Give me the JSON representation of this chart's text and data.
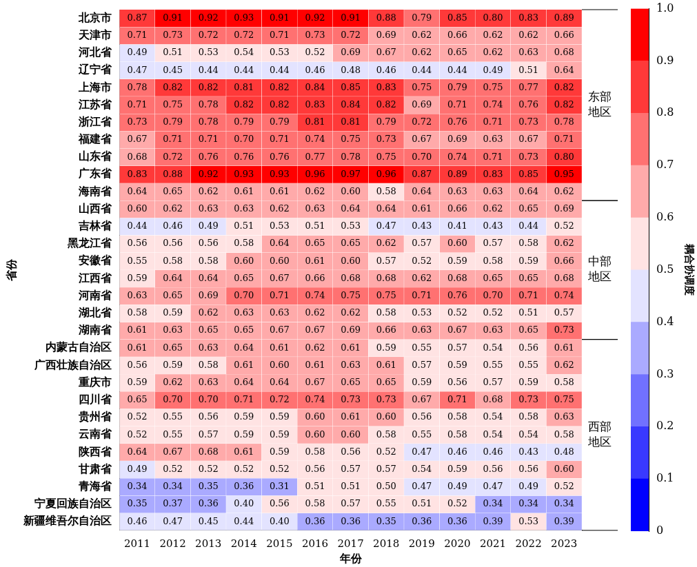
{
  "chart_data": {
    "type": "heatmap",
    "xlabel": "年份",
    "ylabel": "省份",
    "clabel": "耦合协调度",
    "data_labels": true,
    "grid": false,
    "legend": false,
    "categories": [
      "2011",
      "2012",
      "2013",
      "2014",
      "2015",
      "2016",
      "2017",
      "2018",
      "2019",
      "2020",
      "2021",
      "2022",
      "2023"
    ],
    "y_categories": [
      "北京市",
      "天津市",
      "河北省",
      "辽宁省",
      "上海市",
      "江苏省",
      "浙江省",
      "福建省",
      "山东省",
      "广东省",
      "海南省",
      "山西省",
      "吉林省",
      "黑龙江省",
      "安徽省",
      "江西省",
      "河南省",
      "湖北省",
      "湖南省",
      "内蒙古自治区",
      "广西壮族自治区",
      "重庆市",
      "四川省",
      "贵州省",
      "云南省",
      "陕西省",
      "甘肃省",
      "青海省",
      "宁夏回族自治区",
      "新疆维吾尔自治区"
    ],
    "cells": [
      [
        0.87,
        0.91,
        0.92,
        0.93,
        0.91,
        0.92,
        0.91,
        0.88,
        0.79,
        0.85,
        0.8,
        0.83,
        0.89
      ],
      [
        0.71,
        0.73,
        0.72,
        0.72,
        0.71,
        0.73,
        0.72,
        0.69,
        0.62,
        0.66,
        0.62,
        0.62,
        0.66
      ],
      [
        0.49,
        0.51,
        0.53,
        0.54,
        0.53,
        0.52,
        0.69,
        0.67,
        0.62,
        0.65,
        0.62,
        0.63,
        0.68
      ],
      [
        0.47,
        0.45,
        0.44,
        0.44,
        0.44,
        0.46,
        0.48,
        0.46,
        0.44,
        0.44,
        0.49,
        0.51,
        0.64
      ],
      [
        0.78,
        0.82,
        0.82,
        0.81,
        0.82,
        0.84,
        0.85,
        0.83,
        0.75,
        0.79,
        0.75,
        0.77,
        0.82
      ],
      [
        0.71,
        0.75,
        0.78,
        0.82,
        0.82,
        0.83,
        0.84,
        0.82,
        0.69,
        0.71,
        0.74,
        0.76,
        0.82
      ],
      [
        0.73,
        0.79,
        0.78,
        0.79,
        0.79,
        0.81,
        0.81,
        0.79,
        0.72,
        0.76,
        0.71,
        0.73,
        0.78
      ],
      [
        0.67,
        0.71,
        0.71,
        0.7,
        0.71,
        0.74,
        0.75,
        0.73,
        0.67,
        0.69,
        0.63,
        0.67,
        0.71
      ],
      [
        0.68,
        0.72,
        0.76,
        0.76,
        0.76,
        0.77,
        0.78,
        0.75,
        0.7,
        0.74,
        0.71,
        0.73,
        0.8
      ],
      [
        0.83,
        0.88,
        0.92,
        0.93,
        0.93,
        0.96,
        0.97,
        0.96,
        0.87,
        0.89,
        0.83,
        0.85,
        0.95
      ],
      [
        0.64,
        0.65,
        0.62,
        0.61,
        0.61,
        0.62,
        0.6,
        0.58,
        0.64,
        0.63,
        0.63,
        0.64,
        0.62
      ],
      [
        0.6,
        0.62,
        0.63,
        0.63,
        0.62,
        0.63,
        0.64,
        0.64,
        0.61,
        0.66,
        0.62,
        0.65,
        0.69
      ],
      [
        0.44,
        0.46,
        0.49,
        0.51,
        0.53,
        0.51,
        0.53,
        0.47,
        0.43,
        0.41,
        0.43,
        0.44,
        0.52
      ],
      [
        0.56,
        0.56,
        0.56,
        0.58,
        0.64,
        0.65,
        0.65,
        0.62,
        0.57,
        0.6,
        0.57,
        0.58,
        0.62
      ],
      [
        0.55,
        0.58,
        0.58,
        0.6,
        0.6,
        0.61,
        0.6,
        0.57,
        0.52,
        0.59,
        0.58,
        0.59,
        0.66
      ],
      [
        0.59,
        0.64,
        0.64,
        0.65,
        0.67,
        0.66,
        0.68,
        0.68,
        0.62,
        0.68,
        0.65,
        0.65,
        0.68
      ],
      [
        0.63,
        0.65,
        0.69,
        0.7,
        0.71,
        0.74,
        0.75,
        0.75,
        0.71,
        0.76,
        0.7,
        0.71,
        0.74
      ],
      [
        0.58,
        0.59,
        0.62,
        0.63,
        0.63,
        0.62,
        0.62,
        0.58,
        0.53,
        0.52,
        0.52,
        0.51,
        0.57
      ],
      [
        0.61,
        0.63,
        0.65,
        0.65,
        0.67,
        0.67,
        0.69,
        0.66,
        0.63,
        0.67,
        0.63,
        0.65,
        0.73
      ],
      [
        0.61,
        0.65,
        0.63,
        0.64,
        0.61,
        0.62,
        0.61,
        0.59,
        0.55,
        0.57,
        0.54,
        0.56,
        0.61
      ],
      [
        0.56,
        0.59,
        0.58,
        0.61,
        0.6,
        0.61,
        0.63,
        0.61,
        0.57,
        0.59,
        0.55,
        0.55,
        0.62
      ],
      [
        0.59,
        0.62,
        0.63,
        0.64,
        0.64,
        0.67,
        0.65,
        0.65,
        0.59,
        0.56,
        0.57,
        0.59,
        0.58
      ],
      [
        0.65,
        0.7,
        0.7,
        0.71,
        0.72,
        0.74,
        0.73,
        0.73,
        0.67,
        0.71,
        0.68,
        0.73,
        0.75
      ],
      [
        0.52,
        0.55,
        0.56,
        0.59,
        0.59,
        0.6,
        0.61,
        0.6,
        0.56,
        0.58,
        0.54,
        0.58,
        0.63
      ],
      [
        0.52,
        0.55,
        0.57,
        0.59,
        0.59,
        0.6,
        0.6,
        0.58,
        0.55,
        0.58,
        0.54,
        0.54,
        0.58
      ],
      [
        0.64,
        0.67,
        0.68,
        0.61,
        0.59,
        0.58,
        0.56,
        0.52,
        0.47,
        0.46,
        0.46,
        0.43,
        0.48
      ],
      [
        0.49,
        0.52,
        0.52,
        0.52,
        0.52,
        0.56,
        0.57,
        0.57,
        0.54,
        0.59,
        0.56,
        0.56,
        0.6
      ],
      [
        0.34,
        0.34,
        0.35,
        0.36,
        0.31,
        0.51,
        0.51,
        0.5,
        0.47,
        0.49,
        0.47,
        0.49,
        0.52
      ],
      [
        0.35,
        0.37,
        0.36,
        0.4,
        0.56,
        0.58,
        0.57,
        0.55,
        0.51,
        0.52,
        0.34,
        0.34,
        0.34
      ],
      [
        0.46,
        0.47,
        0.45,
        0.44,
        0.4,
        0.36,
        0.36,
        0.35,
        0.36,
        0.36,
        0.39,
        0.53,
        0.39
      ]
    ],
    "clim": [
      0,
      1
    ],
    "cticks": [
      0,
      0.1,
      0.2,
      0.3,
      0.4,
      0.5,
      0.6,
      0.7,
      0.8,
      0.9,
      {
        "value": 1,
        "label": "1.0"
      }
    ],
    "annotations": [
      "东部地区",
      "中部地区",
      "西部地区"
    ],
    "cell_labels": [
      [
        "0.87",
        "0.91",
        "0.92",
        "0.93",
        "0.91",
        "0.92",
        "0.91",
        "0.88",
        "0.79",
        "0.85",
        "0.80",
        "0.83",
        "0.89"
      ],
      [
        "0.71",
        "0.73",
        "0.72",
        "0.72",
        "0.71",
        "0.73",
        "0.72",
        "0.69",
        "0.62",
        "0.66",
        "0.62",
        "0.62",
        "0.66"
      ],
      [
        "0.49",
        "0.51",
        "0.53",
        "0.54",
        "0.53",
        "0.52",
        "0.69",
        "0.67",
        "0.62",
        "0.65",
        "0.62",
        "0.63",
        "0.68"
      ],
      [
        "0.47",
        "0.45",
        "0.44",
        "0.44",
        "0.44",
        "0.46",
        "0.48",
        "0.46",
        "0.44",
        "0.44",
        "0.49",
        "0.51",
        "0.64"
      ],
      [
        "0.78",
        "0.82",
        "0.82",
        "0.81",
        "0.82",
        "0.84",
        "0.85",
        "0.83",
        "0.75",
        "0.79",
        "0.75",
        "0.77",
        "0.82"
      ],
      [
        "0.71",
        "0.75",
        "0.78",
        "0.82",
        "0.82",
        "0.83",
        "0.84",
        "0.82",
        "0.69",
        "0.71",
        "0.74",
        "0.76",
        "0.82"
      ],
      [
        "0.73",
        "0.79",
        "0.78",
        "0.79",
        "0.79",
        "0.81",
        "0.81",
        "0.79",
        "0.72",
        "0.76",
        "0.71",
        "0.73",
        "0.78"
      ],
      [
        "0.67",
        "0.71",
        "0.71",
        "0.70",
        "0.71",
        "0.74",
        "0.75",
        "0.73",
        "0.67",
        "0.69",
        "0.63",
        "0.67",
        "0.71"
      ],
      [
        "0.68",
        "0.72",
        "0.76",
        "0.76",
        "0.76",
        "0.77",
        "0.78",
        "0.75",
        "0.70",
        "0.74",
        "0.71",
        "0.73",
        "0.80"
      ],
      [
        "0.83",
        "0.88",
        "0.92",
        "0.93",
        "0.93",
        "0.96",
        "0.97",
        "0.96",
        "0.87",
        "0.89",
        "0.83",
        "0.85",
        "0.95"
      ],
      [
        "0.64",
        "0.65",
        "0.62",
        "0.61",
        "0.61",
        "0.62",
        "0.60",
        "0.58",
        "0.64",
        "0.63",
        "0.63",
        "0.64",
        "0.62"
      ],
      [
        "0.60",
        "0.62",
        "0.63",
        "0.63",
        "0.62",
        "0.63",
        "0.64",
        "0.64",
        "0.61",
        "0.66",
        "0.62",
        "0.65",
        "0.69"
      ],
      [
        "0.44",
        "0.46",
        "0.49",
        "0.51",
        "0.53",
        "0.51",
        "0.53",
        "0.47",
        "0.43",
        "0.41",
        "0.43",
        "0.44",
        "0.52"
      ],
      [
        "0.56",
        "0.56",
        "0.56",
        "0.58",
        "0.64",
        "0.65",
        "0.65",
        "0.62",
        "0.57",
        "0.60",
        "0.57",
        "0.58",
        "0.62"
      ],
      [
        "0.55",
        "0.58",
        "0.58",
        "0.60",
        "0.60",
        "0.61",
        "0.60",
        "0.57",
        "0.52",
        "0.59",
        "0.58",
        "0.59",
        "0.66"
      ],
      [
        "0.59",
        "0.64",
        "0.64",
        "0.65",
        "0.67",
        "0.66",
        "0.68",
        "0.68",
        "0.62",
        "0.68",
        "0.65",
        "0.65",
        "0.68"
      ],
      [
        "0.63",
        "0.65",
        "0.69",
        "0.70",
        "0.71",
        "0.74",
        "0.75",
        "0.75",
        "0.71",
        "0.76",
        "0.70",
        "0.71",
        "0.74"
      ],
      [
        "0.58",
        "0.59",
        "0.62",
        "0.63",
        "0.63",
        "0.62",
        "0.62",
        "0.58",
        "0.53",
        "0.52",
        "0.52",
        "0.51",
        "0.57"
      ],
      [
        "0.61",
        "0.63",
        "0.65",
        "0.65",
        "0.67",
        "0.67",
        "0.69",
        "0.66",
        "0.63",
        "0.67",
        "0.63",
        "0.65",
        "0.73"
      ],
      [
        "0.61",
        "0.65",
        "0.63",
        "0.64",
        "0.61",
        "0.62",
        "0.61",
        "0.59",
        "0.55",
        "0.57",
        "0.54",
        "0.56",
        "0.61"
      ],
      [
        "0.56",
        "0.59",
        "0.58",
        "0.61",
        "0.60",
        "0.61",
        "0.63",
        "0.61",
        "0.57",
        "0.59",
        "0.55",
        "0.55",
        "0.62"
      ],
      [
        "0.59",
        "0.62",
        "0.63",
        "0.64",
        "0.64",
        "0.67",
        "0.65",
        "0.65",
        "0.59",
        "0.56",
        "0.57",
        "0.59",
        "0.58"
      ],
      [
        "0.65",
        "0.70",
        "0.70",
        "0.71",
        "0.72",
        "0.74",
        "0.73",
        "0.73",
        "0.67",
        "0.71",
        "0.68",
        "0.73",
        "0.75"
      ],
      [
        "0.52",
        "0.55",
        "0.56",
        "0.59",
        "0.59",
        "0.60",
        "0.61",
        "0.60",
        "0.56",
        "0.58",
        "0.54",
        "0.58",
        "0.63"
      ],
      [
        "0.52",
        "0.55",
        "0.57",
        "0.59",
        "0.59",
        "0.60",
        "0.60",
        "0.58",
        "0.55",
        "0.58",
        "0.54",
        "0.54",
        "0.58"
      ],
      [
        "0.64",
        "0.67",
        "0.68",
        "0.61",
        "0.59",
        "0.58",
        "0.56",
        "0.52",
        "0.47",
        "0.46",
        "0.46",
        "0.43",
        "0.48"
      ],
      [
        "0.49",
        "0.52",
        "0.52",
        "0.52",
        "0.52",
        "0.56",
        "0.57",
        "0.57",
        "0.54",
        "0.59",
        "0.56",
        "0.56",
        "0.60"
      ],
      [
        "0.34",
        "0.34",
        "0.35",
        "0.36",
        "0.31",
        "0.51",
        "0.51",
        "0.50",
        "0.47",
        "0.49",
        "0.47",
        "0.49",
        "0.52"
      ],
      [
        "0.35",
        "0.37",
        "0.36",
        "0.40",
        "0.56",
        "0.58",
        "0.57",
        "0.55",
        "0.51",
        "0.52",
        "0.34",
        "0.34",
        "0.34"
      ],
      [
        "0.46",
        "0.47",
        "0.45",
        "0.44",
        "0.40",
        "0.36",
        "0.36",
        "0.35",
        "0.36",
        "0.36",
        "0.39",
        "0.53",
        "0.39"
      ]
    ]
  }
}
